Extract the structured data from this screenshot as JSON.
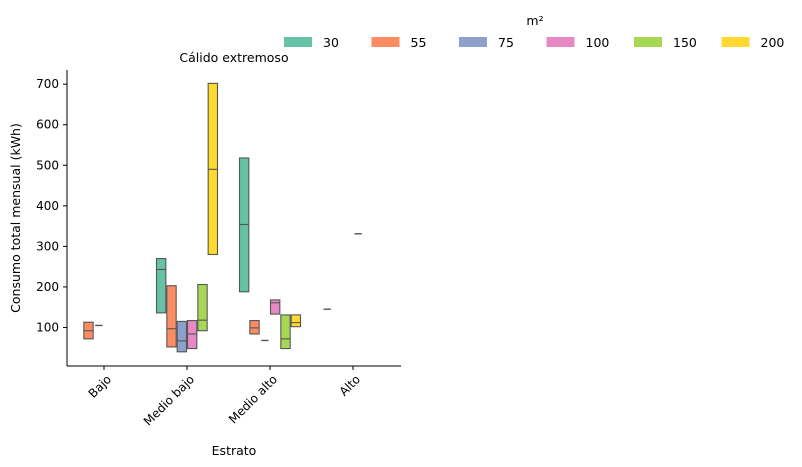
{
  "chart_data": {
    "type": "boxplot",
    "title": "Cálido extremoso",
    "xlabel": "Estrato",
    "ylabel": "Consumo total mensual (kWh)",
    "ylim": [
      5,
      735
    ],
    "yticks": [
      100,
      200,
      300,
      400,
      500,
      600,
      700
    ],
    "categories": [
      "Bajo",
      "Medio bajo",
      "Medio alto",
      "Alto"
    ],
    "legend": {
      "title": "m²",
      "position": "top-right",
      "entries": [
        {
          "label": "30",
          "color": "#66c2a5"
        },
        {
          "label": "55",
          "color": "#fc8d62"
        },
        {
          "label": "75",
          "color": "#8da0cb"
        },
        {
          "label": "100",
          "color": "#e78ac3"
        },
        {
          "label": "150",
          "color": "#a6d854"
        },
        {
          "label": "200",
          "color": "#ffd92f"
        }
      ]
    },
    "boxes": [
      {
        "category": "Bajo",
        "series": "55",
        "q1": 72,
        "median": 92,
        "q3": 113
      },
      {
        "category": "Bajo",
        "series": "75",
        "q1": 105,
        "median": 105,
        "q3": 105
      },
      {
        "category": "Medio bajo",
        "series": "30",
        "q1": 136,
        "median": 243,
        "q3": 270
      },
      {
        "category": "Medio bajo",
        "series": "55",
        "q1": 52,
        "median": 97,
        "q3": 203
      },
      {
        "category": "Medio bajo",
        "series": "75",
        "q1": 40,
        "median": 67,
        "q3": 115
      },
      {
        "category": "Medio bajo",
        "series": "100",
        "q1": 48,
        "median": 84,
        "q3": 117
      },
      {
        "category": "Medio bajo",
        "series": "150",
        "q1": 92,
        "median": 118,
        "q3": 206
      },
      {
        "category": "Medio bajo",
        "series": "200",
        "q1": 280,
        "median": 490,
        "q3": 702
      },
      {
        "category": "Medio alto",
        "series": "30",
        "q1": 188,
        "median": 354,
        "q3": 518
      },
      {
        "category": "Medio alto",
        "series": "55",
        "q1": 84,
        "median": 99,
        "q3": 117
      },
      {
        "category": "Medio alto",
        "series": "75",
        "q1": 68,
        "median": 68,
        "q3": 68
      },
      {
        "category": "Medio alto",
        "series": "100",
        "q1": 133,
        "median": 161,
        "q3": 168
      },
      {
        "category": "Medio alto",
        "series": "150",
        "q1": 48,
        "median": 72,
        "q3": 131
      },
      {
        "category": "Medio alto",
        "series": "200",
        "q1": 102,
        "median": 112,
        "q3": 131
      },
      {
        "category": "Alto",
        "series": "30",
        "q1": 145,
        "median": 145,
        "q3": 145
      },
      {
        "category": "Alto",
        "series": "100",
        "q1": 331,
        "median": 331,
        "q3": 331
      }
    ]
  }
}
